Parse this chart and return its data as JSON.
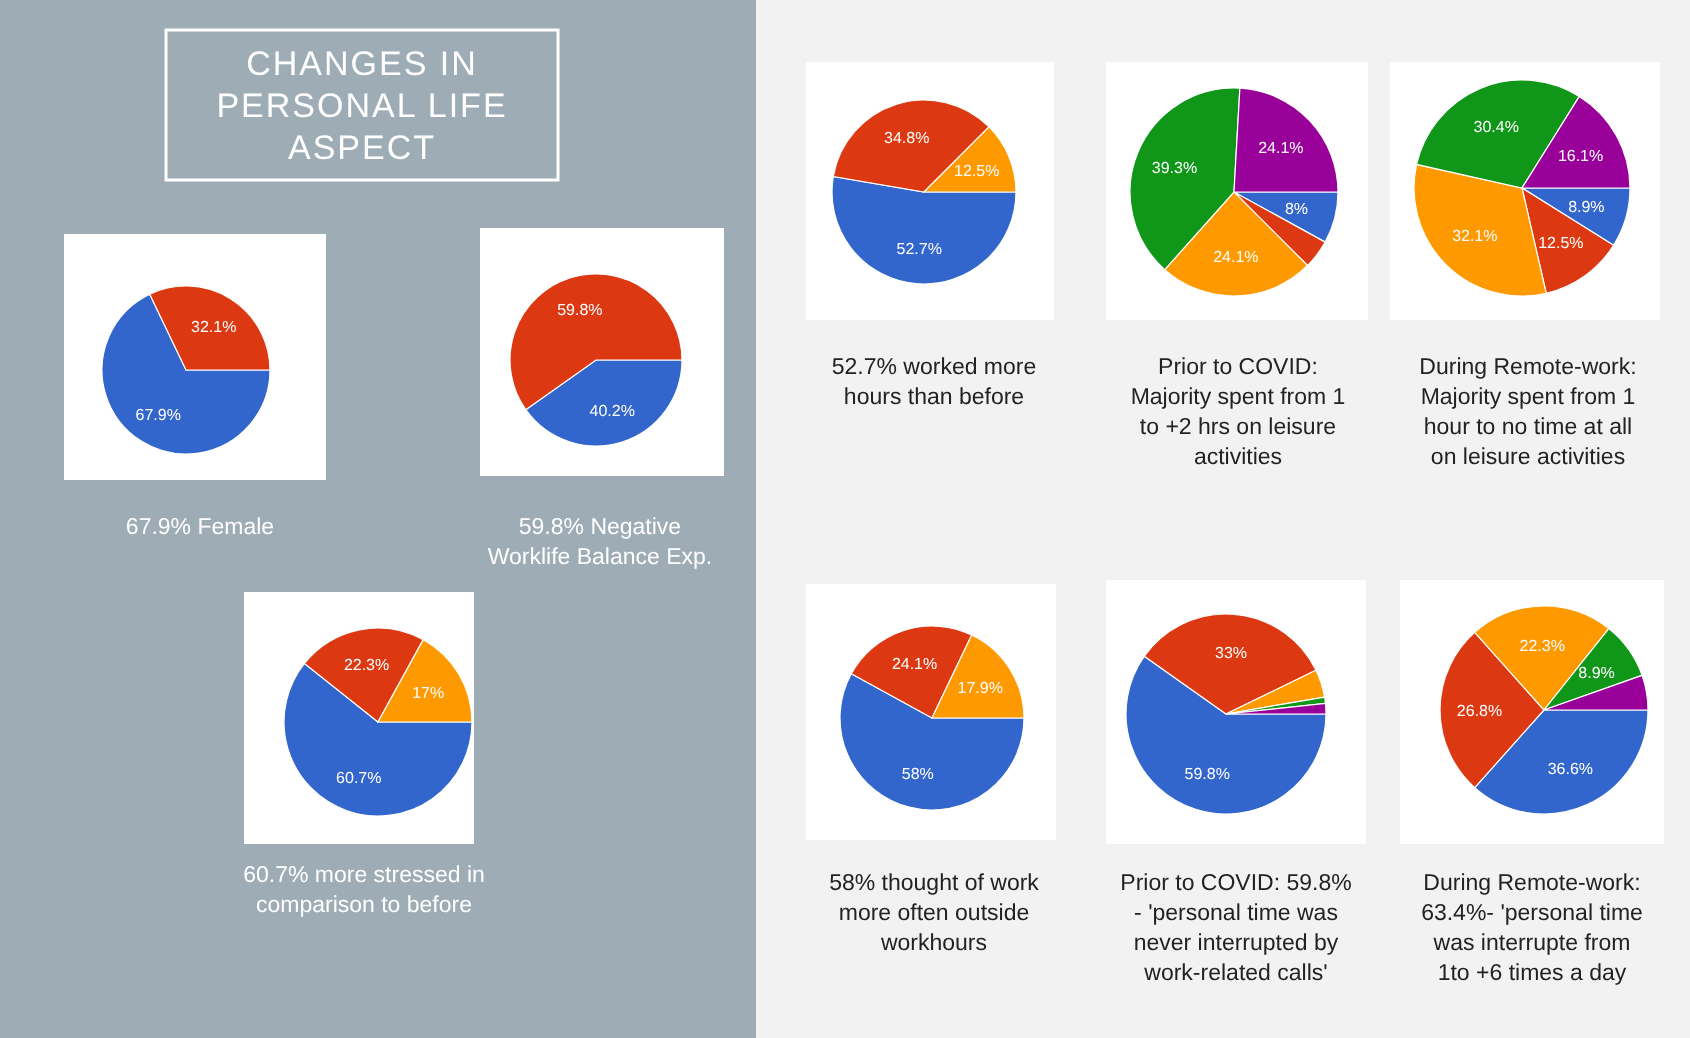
{
  "chart_data": [
    {
      "type": "other",
      "title": "CHANGES IN PERSONAL LIFE ASPECT"
    },
    {
      "type": "pie",
      "annotations": [
        "67.9% Female"
      ],
      "categories": [
        null,
        null
      ],
      "values": [
        67.9,
        32.1
      ],
      "colors": [
        "#3366cc",
        "#dc3912"
      ],
      "value_labels": [
        "67.9%",
        "32.1%"
      ]
    },
    {
      "type": "pie",
      "annotations": [
        "59.8% Negative Worklife Balance Exp."
      ],
      "categories": [
        null,
        null
      ],
      "values": [
        40.2,
        59.8
      ],
      "colors": [
        "#3366cc",
        "#dc3912"
      ],
      "value_labels": [
        "40.2%",
        "59.8%"
      ]
    },
    {
      "type": "pie",
      "annotations": [
        "60.7% more stressed in comparison to before"
      ],
      "categories": [
        null,
        null,
        null
      ],
      "values": [
        60.7,
        22.3,
        17
      ],
      "colors": [
        "#3366cc",
        "#dc3912",
        "#ff9900"
      ],
      "value_labels": [
        "60.7%",
        "22.3%",
        "17%"
      ]
    },
    {
      "type": "pie",
      "annotations": [
        "52.7% worked more hours than before"
      ],
      "categories": [
        null,
        null,
        null
      ],
      "values": [
        52.7,
        34.8,
        12.5
      ],
      "colors": [
        "#3366cc",
        "#dc3912",
        "#ff9900"
      ],
      "value_labels": [
        "52.7%",
        "34.8%",
        "12.5%"
      ]
    },
    {
      "type": "pie",
      "annotations": [
        "Prior to COVID: Majority spent from 1 to +2 hrs on leisure activities"
      ],
      "categories": [
        null,
        null,
        null,
        null,
        null
      ],
      "values": [
        8,
        4.5,
        24.1,
        39.3,
        24.1
      ],
      "colors": [
        "#3366cc",
        "#dc3912",
        "#ff9900",
        "#109618",
        "#990099"
      ],
      "value_labels": [
        "8%",
        null,
        "24.1%",
        "39.3%",
        "24.1%"
      ]
    },
    {
      "type": "pie",
      "annotations": [
        "During Remote-work: Majority spent from 1 hour to no time at all on leisure activities"
      ],
      "categories": [
        null,
        null,
        null,
        null,
        null
      ],
      "values": [
        8.9,
        12.5,
        32.1,
        30.4,
        16.1
      ],
      "colors": [
        "#3366cc",
        "#dc3912",
        "#ff9900",
        "#109618",
        "#990099"
      ],
      "value_labels": [
        "8.9%",
        "12.5%",
        "32.1%",
        "30.4%",
        "16.1%"
      ]
    },
    {
      "type": "pie",
      "annotations": [
        "58% thought of work more often outside workhours"
      ],
      "categories": [
        null,
        null,
        null
      ],
      "values": [
        58,
        24.1,
        17.9
      ],
      "colors": [
        "#3366cc",
        "#dc3912",
        "#ff9900"
      ],
      "value_labels": [
        "58%",
        "24.1%",
        "17.9%"
      ]
    },
    {
      "type": "pie",
      "annotations": [
        "Prior to COVID: 59.8% - 'personal time was never interrupted by work-related calls'"
      ],
      "categories": [
        null,
        null,
        null,
        null,
        null
      ],
      "values": [
        59.8,
        33,
        4.5,
        1,
        1.7
      ],
      "colors": [
        "#3366cc",
        "#dc3912",
        "#ff9900",
        "#109618",
        "#990099"
      ],
      "value_labels": [
        "59.8%",
        "33%",
        null,
        null,
        null
      ]
    },
    {
      "type": "pie",
      "annotations": [
        "During Remote-work: 63.4%- 'personal time was interrupte from 1to +6 times a day"
      ],
      "categories": [
        null,
        null,
        null,
        null,
        null
      ],
      "values": [
        36.6,
        26.8,
        22.3,
        8.9,
        5.4
      ],
      "colors": [
        "#3366cc",
        "#dc3912",
        "#ff9900",
        "#109618",
        "#990099"
      ],
      "value_labels": [
        "36.6%",
        "26.8%",
        "22.3%",
        "8.9%",
        null
      ]
    }
  ]
}
